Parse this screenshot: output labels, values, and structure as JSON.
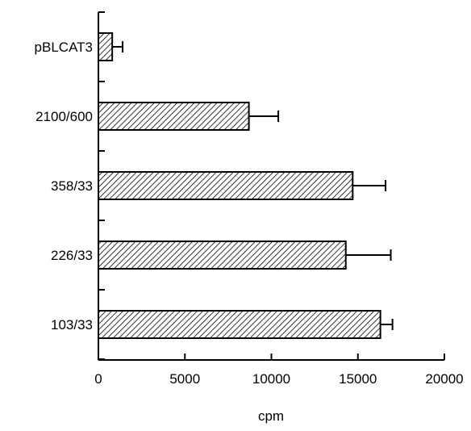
{
  "chart_data": {
    "type": "bar",
    "orientation": "horizontal",
    "categories": [
      "pBLCAT3",
      "2100/600",
      "358/33",
      "226/33",
      "103/33"
    ],
    "values": [
      800,
      8700,
      14700,
      14300,
      16300
    ],
    "errors": [
      600,
      1700,
      1900,
      2600,
      700
    ],
    "xlabel": "cpm",
    "ylabel": "",
    "title": "",
    "xlim": [
      0,
      20000
    ],
    "xticks": [
      0,
      5000,
      10000,
      15000,
      20000
    ],
    "bar_fill": "diagonal-hatch",
    "grid": false,
    "legend": "none"
  }
}
